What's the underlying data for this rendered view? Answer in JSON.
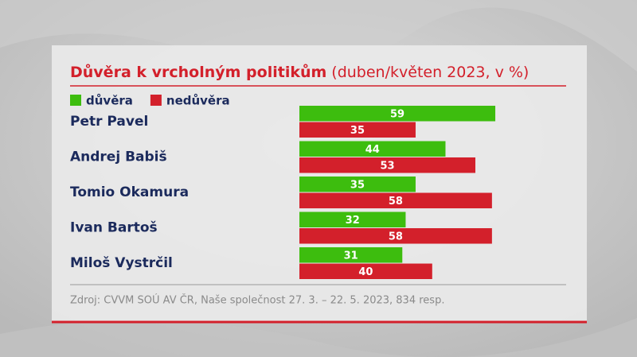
{
  "chart_data": {
    "type": "bar",
    "orientation": "horizontal",
    "title": "Důvěra k vrcholným politikům",
    "subtitle": "(duben/květen 2023, v %)",
    "categories": [
      "Petr Pavel",
      "Andrej Babiš",
      "Tomio Okamura",
      "Ivan Bartoš",
      "Miloš Vystrčil"
    ],
    "series": [
      {
        "name": "důvěra",
        "color": "#3dbd0e",
        "values": [
          59,
          44,
          35,
          32,
          31
        ]
      },
      {
        "name": "nedůvěra",
        "color": "#d3202b",
        "values": [
          35,
          53,
          58,
          58,
          40
        ]
      }
    ],
    "source": "Zdroj: CVVM SOÚ AV ČR, Naše společnost 27. 3. – 22. 5. 2023, 834 resp."
  }
}
